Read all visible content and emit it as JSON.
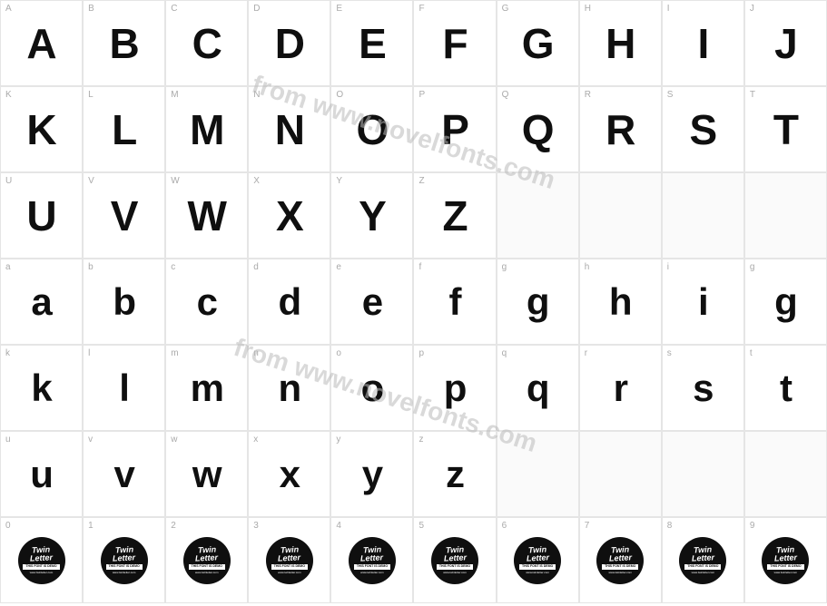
{
  "watermark_text": "from www.novelfonts.com",
  "watermark_color": "#bbbbbb",
  "grid_border_color": "#e5e5e5",
  "label_color": "#aaaaaa",
  "glyph_color": "#0f0f0f",
  "background_color": "#ffffff",
  "logo": {
    "line1": "Twin",
    "line2": "Letter",
    "bar_text": "THIS FONT IS DEMO",
    "sub_text": "www.twinletter.com"
  },
  "rows": [
    {
      "type": "upper",
      "cells": [
        {
          "label": "A",
          "glyph": "A"
        },
        {
          "label": "B",
          "glyph": "B"
        },
        {
          "label": "C",
          "glyph": "C"
        },
        {
          "label": "D",
          "glyph": "D"
        },
        {
          "label": "E",
          "glyph": "E"
        },
        {
          "label": "F",
          "glyph": "F"
        },
        {
          "label": "G",
          "glyph": "G"
        },
        {
          "label": "H",
          "glyph": "H"
        },
        {
          "label": "I",
          "glyph": "I"
        },
        {
          "label": "J",
          "glyph": "J"
        }
      ]
    },
    {
      "type": "upper",
      "cells": [
        {
          "label": "K",
          "glyph": "K"
        },
        {
          "label": "L",
          "glyph": "L"
        },
        {
          "label": "M",
          "glyph": "M"
        },
        {
          "label": "N",
          "glyph": "N"
        },
        {
          "label": "O",
          "glyph": "O"
        },
        {
          "label": "P",
          "glyph": "P"
        },
        {
          "label": "Q",
          "glyph": "Q"
        },
        {
          "label": "R",
          "glyph": "R"
        },
        {
          "label": "S",
          "glyph": "S"
        },
        {
          "label": "T",
          "glyph": "T"
        }
      ]
    },
    {
      "type": "upper",
      "cells": [
        {
          "label": "U",
          "glyph": "U"
        },
        {
          "label": "V",
          "glyph": "V"
        },
        {
          "label": "W",
          "glyph": "W"
        },
        {
          "label": "X",
          "glyph": "X"
        },
        {
          "label": "Y",
          "glyph": "Y"
        },
        {
          "label": "Z",
          "glyph": "Z"
        },
        {
          "label": "",
          "glyph": "",
          "empty": true
        },
        {
          "label": "",
          "glyph": "",
          "empty": true
        },
        {
          "label": "",
          "glyph": "",
          "empty": true
        },
        {
          "label": "",
          "glyph": "",
          "empty": true
        }
      ]
    },
    {
      "type": "lower",
      "cells": [
        {
          "label": "a",
          "glyph": "a"
        },
        {
          "label": "b",
          "glyph": "b"
        },
        {
          "label": "c",
          "glyph": "c"
        },
        {
          "label": "d",
          "glyph": "d"
        },
        {
          "label": "e",
          "glyph": "e"
        },
        {
          "label": "f",
          "glyph": "f"
        },
        {
          "label": "g",
          "glyph": "g"
        },
        {
          "label": "h",
          "glyph": "h"
        },
        {
          "label": "i",
          "glyph": "i"
        },
        {
          "label": "g",
          "glyph": "g"
        }
      ]
    },
    {
      "type": "lower",
      "cells": [
        {
          "label": "k",
          "glyph": "k"
        },
        {
          "label": "l",
          "glyph": "l"
        },
        {
          "label": "m",
          "glyph": "m"
        },
        {
          "label": "n",
          "glyph": "n"
        },
        {
          "label": "o",
          "glyph": "o"
        },
        {
          "label": "p",
          "glyph": "p"
        },
        {
          "label": "q",
          "glyph": "q"
        },
        {
          "label": "r",
          "glyph": "r"
        },
        {
          "label": "s",
          "glyph": "s"
        },
        {
          "label": "t",
          "glyph": "t"
        }
      ]
    },
    {
      "type": "lower",
      "cells": [
        {
          "label": "u",
          "glyph": "u"
        },
        {
          "label": "v",
          "glyph": "v"
        },
        {
          "label": "w",
          "glyph": "w"
        },
        {
          "label": "x",
          "glyph": "x"
        },
        {
          "label": "y",
          "glyph": "y"
        },
        {
          "label": "z",
          "glyph": "z"
        },
        {
          "label": "",
          "glyph": "",
          "empty": true
        },
        {
          "label": "",
          "glyph": "",
          "empty": true
        },
        {
          "label": "",
          "glyph": "",
          "empty": true
        },
        {
          "label": "",
          "glyph": "",
          "empty": true
        }
      ]
    },
    {
      "type": "digit",
      "cells": [
        {
          "label": "0",
          "glyph": "logo"
        },
        {
          "label": "1",
          "glyph": "logo"
        },
        {
          "label": "2",
          "glyph": "logo"
        },
        {
          "label": "3",
          "glyph": "logo"
        },
        {
          "label": "4",
          "glyph": "logo"
        },
        {
          "label": "5",
          "glyph": "logo"
        },
        {
          "label": "6",
          "glyph": "logo"
        },
        {
          "label": "7",
          "glyph": "logo"
        },
        {
          "label": "8",
          "glyph": "logo"
        },
        {
          "label": "9",
          "glyph": "logo"
        }
      ]
    }
  ]
}
